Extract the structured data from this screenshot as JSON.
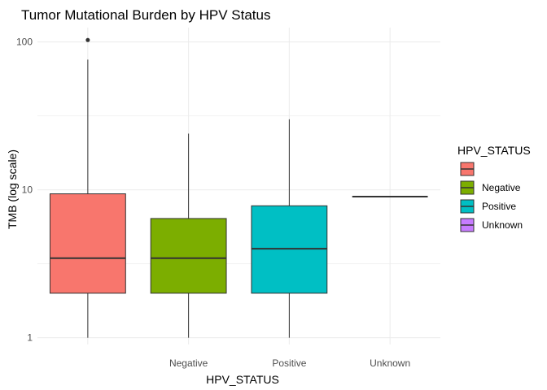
{
  "chart_data": {
    "type": "boxplot",
    "title": "Tumor Mutational Burden by HPV Status",
    "xlabel": "HPV_STATUS",
    "ylabel": "TMB (log scale)",
    "y_scale": "log10",
    "ylim": [
      0.9,
      125
    ],
    "y_ticks": [
      1,
      10,
      100
    ],
    "y_tick_labels": [
      "1",
      "10",
      "100"
    ],
    "grid": true,
    "legend": {
      "title": "HPV_STATUS",
      "position": "right",
      "entries": [
        {
          "label": "",
          "color": "#F8766D"
        },
        {
          "label": "Negative",
          "color": "#7CAE00"
        },
        {
          "label": "Positive",
          "color": "#00BFC4"
        },
        {
          "label": "Unknown",
          "color": "#C77CFF"
        }
      ]
    },
    "categories": [
      "",
      "Negative",
      "Positive",
      "Unknown"
    ],
    "boxes": [
      {
        "category": "",
        "color": "#F8766D",
        "whisker_low": 1.0,
        "q1": 2.0,
        "median": 3.45,
        "q3": 9.4,
        "whisker_high": 76,
        "outliers": [
          103
        ]
      },
      {
        "category": "Negative",
        "color": "#7CAE00",
        "whisker_low": 1.0,
        "q1": 2.0,
        "median": 3.45,
        "q3": 6.4,
        "whisker_high": 24,
        "outliers": []
      },
      {
        "category": "Positive",
        "color": "#00BFC4",
        "whisker_low": 1.0,
        "q1": 2.0,
        "median": 4.0,
        "q3": 7.8,
        "whisker_high": 30,
        "outliers": []
      },
      {
        "category": "Unknown",
        "color": "#C77CFF",
        "whisker_low": 9.0,
        "q1": 9.0,
        "median": 9.0,
        "q3": 9.0,
        "whisker_high": 9.0,
        "outliers": []
      }
    ]
  }
}
